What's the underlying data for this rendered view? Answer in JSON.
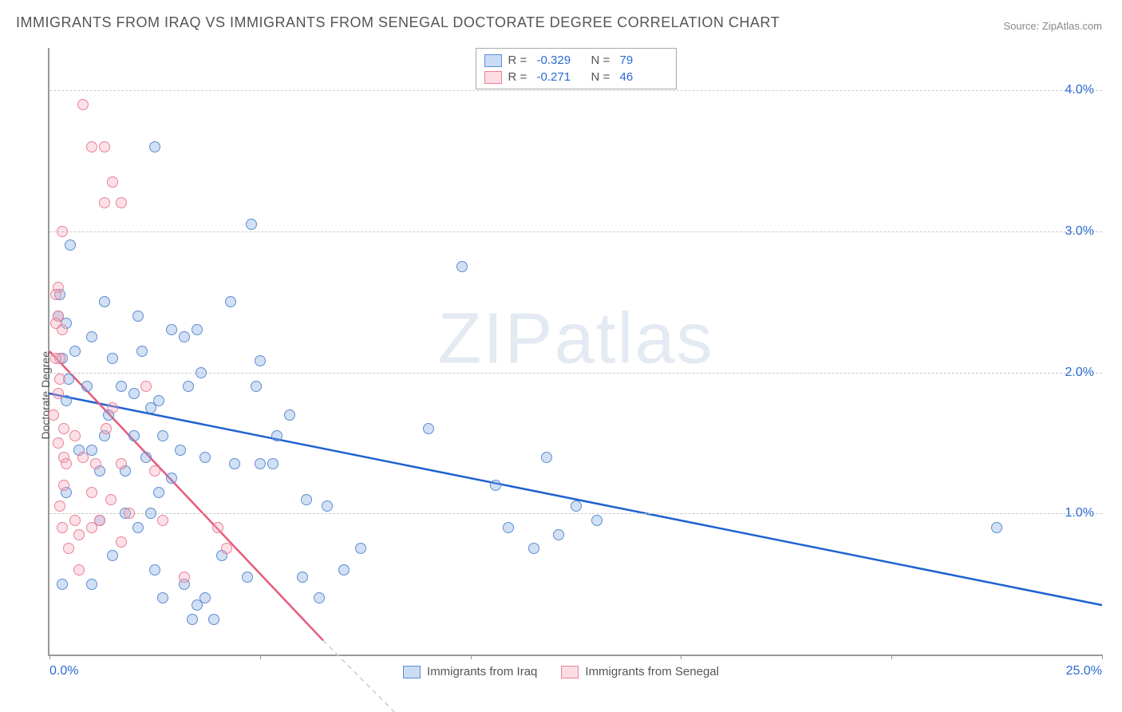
{
  "title": "IMMIGRANTS FROM IRAQ VS IMMIGRANTS FROM SENEGAL DOCTORATE DEGREE CORRELATION CHART",
  "source": "Source: ZipAtlas.com",
  "watermark": "ZIPatlas",
  "chart": {
    "type": "scatter",
    "ylabel": "Doctorate Degree",
    "xlim": [
      0,
      25
    ],
    "ylim": [
      0,
      4.3
    ],
    "xtick_positions": [
      0,
      5,
      10,
      15,
      20,
      25
    ],
    "xtick_label_left": "0.0%",
    "xtick_label_right": "25.0%",
    "ytick_positions": [
      1.0,
      2.0,
      3.0,
      4.0
    ],
    "ytick_labels": [
      "1.0%",
      "2.0%",
      "3.0%",
      "4.0%"
    ],
    "grid_y": [
      1.0,
      2.0,
      3.0,
      4.0
    ],
    "grid_color": "#cccccc",
    "background_color": "#ffffff",
    "axis_color": "#999999",
    "marker_radius": 7,
    "series": [
      {
        "name": "Immigrants from Iraq",
        "color_fill": "rgba(122,167,224,0.35)",
        "color_stroke": "#5384cf",
        "r": "-0.329",
        "n": "79",
        "trend": {
          "x1": 0,
          "y1": 1.85,
          "x2": 25,
          "y2": 0.35,
          "color": "#1e62d0",
          "width": 2.5
        },
        "points": [
          [
            0.5,
            2.9
          ],
          [
            2.5,
            3.6
          ],
          [
            4.8,
            3.05
          ],
          [
            4.3,
            2.5
          ],
          [
            5.0,
            2.08
          ],
          [
            3.2,
            2.25
          ],
          [
            3.6,
            2.0
          ],
          [
            2.1,
            2.4
          ],
          [
            1.3,
            2.5
          ],
          [
            1.5,
            2.1
          ],
          [
            0.4,
            2.35
          ],
          [
            0.6,
            2.15
          ],
          [
            0.4,
            1.8
          ],
          [
            0.9,
            1.9
          ],
          [
            1.4,
            1.7
          ],
          [
            2.4,
            1.75
          ],
          [
            2.6,
            1.8
          ],
          [
            3.1,
            1.45
          ],
          [
            2.0,
            1.55
          ],
          [
            3.7,
            1.4
          ],
          [
            1.2,
            1.3
          ],
          [
            2.9,
            1.25
          ],
          [
            1.8,
            1.0
          ],
          [
            2.1,
            0.9
          ],
          [
            1.0,
            0.5
          ],
          [
            3.2,
            0.5
          ],
          [
            3.7,
            0.4
          ],
          [
            3.9,
            0.25
          ],
          [
            4.4,
            1.35
          ],
          [
            5.0,
            1.35
          ],
          [
            5.3,
            1.35
          ],
          [
            5.7,
            1.7
          ],
          [
            6.1,
            1.1
          ],
          [
            6.4,
            0.4
          ],
          [
            6.6,
            1.05
          ],
          [
            7.0,
            0.6
          ],
          [
            7.4,
            0.75
          ],
          [
            9.0,
            1.6
          ],
          [
            9.8,
            2.75
          ],
          [
            10.6,
            1.2
          ],
          [
            10.9,
            0.9
          ],
          [
            11.5,
            0.75
          ],
          [
            11.8,
            1.4
          ],
          [
            12.1,
            0.85
          ],
          [
            13.0,
            0.95
          ],
          [
            12.5,
            1.05
          ],
          [
            22.5,
            0.9
          ],
          [
            0.2,
            2.4
          ],
          [
            0.3,
            2.1
          ],
          [
            4.1,
            0.7
          ],
          [
            2.5,
            0.6
          ],
          [
            3.5,
            0.35
          ],
          [
            2.7,
            1.55
          ],
          [
            1.7,
            1.9
          ],
          [
            2.2,
            2.15
          ],
          [
            2.9,
            2.3
          ],
          [
            0.7,
            1.45
          ],
          [
            0.4,
            1.15
          ],
          [
            1.2,
            0.95
          ],
          [
            2.0,
            1.85
          ],
          [
            3.3,
            1.9
          ],
          [
            1.5,
            0.7
          ],
          [
            2.3,
            1.4
          ],
          [
            4.9,
            1.9
          ],
          [
            0.25,
            2.55
          ],
          [
            1.0,
            2.25
          ],
          [
            3.5,
            2.3
          ],
          [
            2.4,
            1.0
          ],
          [
            4.7,
            0.55
          ],
          [
            5.4,
            1.55
          ],
          [
            2.7,
            0.4
          ],
          [
            3.4,
            0.25
          ],
          [
            1.8,
            1.3
          ],
          [
            0.3,
            0.5
          ],
          [
            1.0,
            1.45
          ],
          [
            0.45,
            1.95
          ],
          [
            2.6,
            1.15
          ],
          [
            1.3,
            1.55
          ],
          [
            6.0,
            0.55
          ]
        ]
      },
      {
        "name": "Immigrants from Senegal",
        "color_fill": "rgba(244,170,185,0.35)",
        "color_stroke": "#ea788f",
        "r": "-0.271",
        "n": "46",
        "trend": {
          "x1": 0,
          "y1": 2.15,
          "x2": 6.5,
          "y2": 0.1,
          "color": "#e85a7a",
          "width": 2.5
        },
        "trend_extend": {
          "x1": 6.5,
          "y1": 0.1,
          "x2": 8.5,
          "y2": -0.5,
          "color": "#cccccc",
          "dash": "6,5",
          "width": 1.5
        },
        "points": [
          [
            0.8,
            3.9
          ],
          [
            1.0,
            3.6
          ],
          [
            1.3,
            3.6
          ],
          [
            1.5,
            3.35
          ],
          [
            1.3,
            3.2
          ],
          [
            1.7,
            3.2
          ],
          [
            0.3,
            3.0
          ],
          [
            0.2,
            2.6
          ],
          [
            0.15,
            2.55
          ],
          [
            0.2,
            2.4
          ],
          [
            0.3,
            2.3
          ],
          [
            0.15,
            2.35
          ],
          [
            0.25,
            2.1
          ],
          [
            0.15,
            2.1
          ],
          [
            0.25,
            1.95
          ],
          [
            0.1,
            1.7
          ],
          [
            0.35,
            1.6
          ],
          [
            0.2,
            1.5
          ],
          [
            0.35,
            1.4
          ],
          [
            0.6,
            1.55
          ],
          [
            0.4,
            1.35
          ],
          [
            0.8,
            1.4
          ],
          [
            0.35,
            1.2
          ],
          [
            0.25,
            1.05
          ],
          [
            0.6,
            0.95
          ],
          [
            0.3,
            0.9
          ],
          [
            0.7,
            0.85
          ],
          [
            0.45,
            0.75
          ],
          [
            0.7,
            0.6
          ],
          [
            1.0,
            0.9
          ],
          [
            1.0,
            1.15
          ],
          [
            1.2,
            0.95
          ],
          [
            1.1,
            1.35
          ],
          [
            1.35,
            1.6
          ],
          [
            1.5,
            1.75
          ],
          [
            1.45,
            1.1
          ],
          [
            1.7,
            0.8
          ],
          [
            1.7,
            1.35
          ],
          [
            1.9,
            1.0
          ],
          [
            2.3,
            1.9
          ],
          [
            2.5,
            1.3
          ],
          [
            2.7,
            0.95
          ],
          [
            3.2,
            0.55
          ],
          [
            4.0,
            0.9
          ],
          [
            4.2,
            0.75
          ],
          [
            0.2,
            1.85
          ]
        ]
      }
    ],
    "legend_top": {
      "rows": [
        {
          "swatch": "blue",
          "r_label": "R =",
          "r_val": "-0.329",
          "n_label": "N =",
          "n_val": "79"
        },
        {
          "swatch": "pink",
          "r_label": "R =",
          "r_val": "-0.271",
          "n_label": "N =",
          "n_val": "46"
        }
      ]
    },
    "legend_bottom": [
      {
        "swatch": "blue",
        "label": "Immigrants from Iraq"
      },
      {
        "swatch": "pink",
        "label": "Immigrants from Senegal"
      }
    ]
  }
}
